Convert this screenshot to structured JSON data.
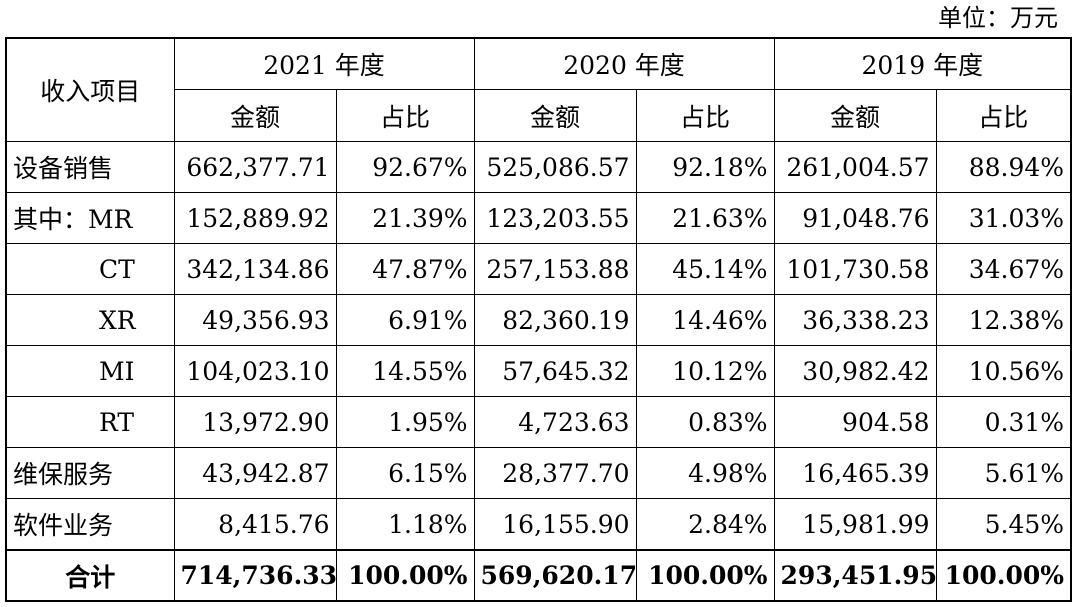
{
  "unit_label": "单位：万元",
  "headers": {
    "item": "收入项目",
    "years": [
      "2021 年度",
      "2020 年度",
      "2019 年度"
    ],
    "amount": "金额",
    "share": "占比"
  },
  "rows": [
    {
      "label": "设备销售",
      "v": [
        "662,377.71",
        "92.67%",
        "525,086.57",
        "92.18%",
        "261,004.57",
        "88.94%"
      ]
    },
    {
      "label": "其中：MR",
      "v": [
        "152,889.92",
        "21.39%",
        "123,203.55",
        "21.63%",
        "91,048.76",
        "31.03%"
      ]
    },
    {
      "label": "CT",
      "v": [
        "342,134.86",
        "47.87%",
        "257,153.88",
        "45.14%",
        "101,730.58",
        "34.67%"
      ]
    },
    {
      "label": "XR",
      "v": [
        "49,356.93",
        "6.91%",
        "82,360.19",
        "14.46%",
        "36,338.23",
        "12.38%"
      ]
    },
    {
      "label": "MI",
      "v": [
        "104,023.10",
        "14.55%",
        "57,645.32",
        "10.12%",
        "30,982.42",
        "10.56%"
      ]
    },
    {
      "label": "RT",
      "v": [
        "13,972.90",
        "1.95%",
        "4,723.63",
        "0.83%",
        "904.58",
        "0.31%"
      ]
    },
    {
      "label": "维保服务",
      "v": [
        "43,942.87",
        "6.15%",
        "28,377.70",
        "4.98%",
        "16,465.39",
        "5.61%"
      ]
    },
    {
      "label": "软件业务",
      "v": [
        "8,415.76",
        "1.18%",
        "16,155.90",
        "2.84%",
        "15,981.99",
        "5.45%"
      ]
    }
  ],
  "total": {
    "label": "合计",
    "v": [
      "714,736.33",
      "100.00%",
      "569,620.17",
      "100.00%",
      "293,451.95",
      "100.00%"
    ]
  }
}
